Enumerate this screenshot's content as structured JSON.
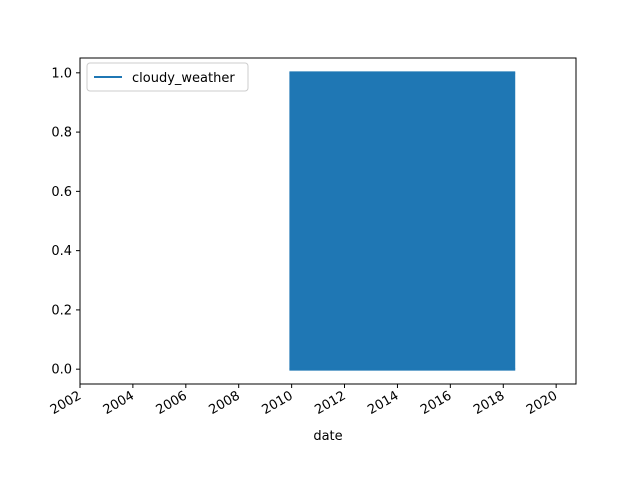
{
  "chart_data": {
    "type": "line",
    "title": "",
    "xlabel": "date",
    "ylabel": "",
    "x_axis_type": "date",
    "xlim": [
      "2002-01-01",
      "2020-10-01"
    ],
    "ylim": [
      -0.05,
      1.05
    ],
    "x_ticks": [
      "2002",
      "2004",
      "2006",
      "2008",
      "2010",
      "2012",
      "2014",
      "2016",
      "2018",
      "2020"
    ],
    "y_ticks": [
      "0.0",
      "0.2",
      "0.4",
      "0.6",
      "0.8",
      "1.0"
    ],
    "grid": false,
    "legend": {
      "placement": "upper-left",
      "entries": [
        "cloudy_weather"
      ]
    },
    "series": [
      {
        "name": "cloudy_weather",
        "color": "#1f77b4",
        "x_start": "2009-12-01",
        "x_end": "2018-06-15",
        "values_range": [
          0,
          1
        ],
        "note_values": "binary values alternating between 0 and 1 across the whole date span"
      }
    ]
  }
}
